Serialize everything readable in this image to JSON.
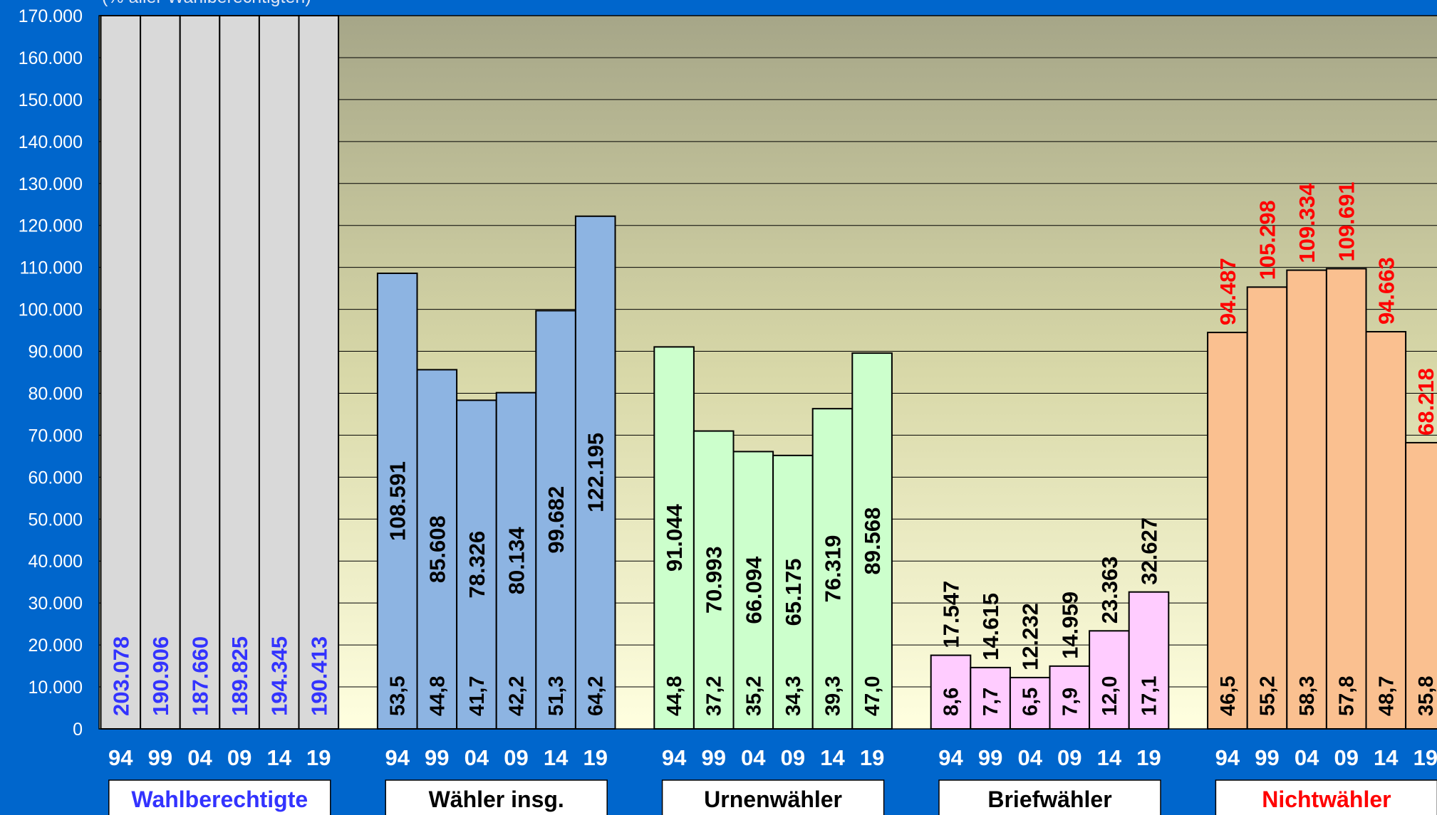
{
  "chart_data": {
    "type": "bar",
    "subtitle": "(% aller Wahlberechtigten)",
    "ylim": [
      0,
      170000
    ],
    "yticks": [
      0,
      {
        "value": 10000,
        "label": "10.000"
      },
      {
        "value": 20000,
        "label": "20.000"
      },
      {
        "value": 30000,
        "label": "30.000"
      },
      {
        "value": 40000,
        "label": "40.000"
      },
      {
        "value": 50000,
        "label": "50.000"
      },
      {
        "value": 60000,
        "label": "60.000"
      },
      {
        "value": 70000,
        "label": "70.000"
      },
      {
        "value": 80000,
        "label": "80.000"
      },
      {
        "value": 90000,
        "label": "90.000"
      },
      {
        "value": 100000,
        "label": "100.000"
      },
      {
        "value": 110000,
        "label": "110.000"
      },
      {
        "value": 120000,
        "label": "120.000"
      },
      {
        "value": 130000,
        "label": "130.000"
      },
      {
        "value": 140000,
        "label": "140.000"
      },
      {
        "value": 150000,
        "label": "150.000"
      },
      {
        "value": 160000,
        "label": "160.000"
      },
      {
        "value": 170000,
        "label": "170.000"
      }
    ],
    "grid": true,
    "groups": [
      {
        "name": "Wahlberechtigte",
        "color": "#d9d9d9",
        "label_color": "#3333ff",
        "categories": [
          "94",
          "99",
          "04",
          "09",
          "14",
          "19"
        ],
        "values": [
          203078,
          190906,
          187660,
          189825,
          194345,
          190413
        ],
        "value_labels": [
          "203.078",
          "190.906",
          "187.660",
          "189.825",
          "194.345",
          "190.413"
        ]
      },
      {
        "name": "Wähler insg.",
        "color": "#8db4e2",
        "label_color": "#000000",
        "categories": [
          "94",
          "99",
          "04",
          "09",
          "14",
          "19"
        ],
        "values": [
          108591,
          85608,
          78326,
          80134,
          99682,
          122195
        ],
        "value_labels": [
          "108.591",
          "85.608",
          "78.326",
          "80.134",
          "99.682",
          "122.195"
        ],
        "shares": [
          53.5,
          44.8,
          41.7,
          42.2,
          51.3,
          64.2
        ],
        "share_labels": [
          "53,5",
          "44,8",
          "41,7",
          "42,2",
          "51,3",
          "64,2"
        ]
      },
      {
        "name": "Urnenwähler",
        "color": "#ccffcc",
        "label_color": "#000000",
        "categories": [
          "94",
          "99",
          "04",
          "09",
          "14",
          "19"
        ],
        "values": [
          91044,
          70993,
          66094,
          65175,
          76319,
          89568
        ],
        "value_labels": [
          "91.044",
          "70.993",
          "66.094",
          "65.175",
          "76.319",
          "89.568"
        ],
        "shares": [
          44.8,
          37.2,
          35.2,
          34.3,
          39.3,
          47.0
        ],
        "share_labels": [
          "44,8",
          "37,2",
          "35,2",
          "34,3",
          "39,3",
          "47,0"
        ]
      },
      {
        "name": "Briefwähler",
        "color": "#ffccff",
        "label_color": "#000000",
        "categories": [
          "94",
          "99",
          "04",
          "09",
          "14",
          "19"
        ],
        "values": [
          17547,
          14615,
          12232,
          14959,
          23363,
          32627
        ],
        "value_labels": [
          "17.547",
          "14.615",
          "12.232",
          "14.959",
          "23.363",
          "32.627"
        ],
        "shares": [
          8.6,
          7.7,
          6.5,
          7.9,
          12.0,
          17.1
        ],
        "share_labels": [
          "8,6",
          "7,7",
          "6,5",
          "7,9",
          "12,0",
          "17,1"
        ]
      },
      {
        "name": "Nichtwähler",
        "color": "#fac090",
        "label_color": "#ff0000",
        "categories": [
          "94",
          "99",
          "04",
          "09",
          "14",
          "19"
        ],
        "values": [
          94487,
          105298,
          109334,
          109691,
          94663,
          68218
        ],
        "value_labels": [
          "94.487",
          "105.298",
          "109.334",
          "109.691",
          "94.663",
          "68.218"
        ],
        "shares": [
          46.5,
          55.2,
          58.3,
          57.8,
          48.7,
          35.8
        ],
        "share_labels": [
          "46,5",
          "55,2",
          "58,3",
          "57,8",
          "48,7",
          "35,8"
        ]
      }
    ]
  }
}
